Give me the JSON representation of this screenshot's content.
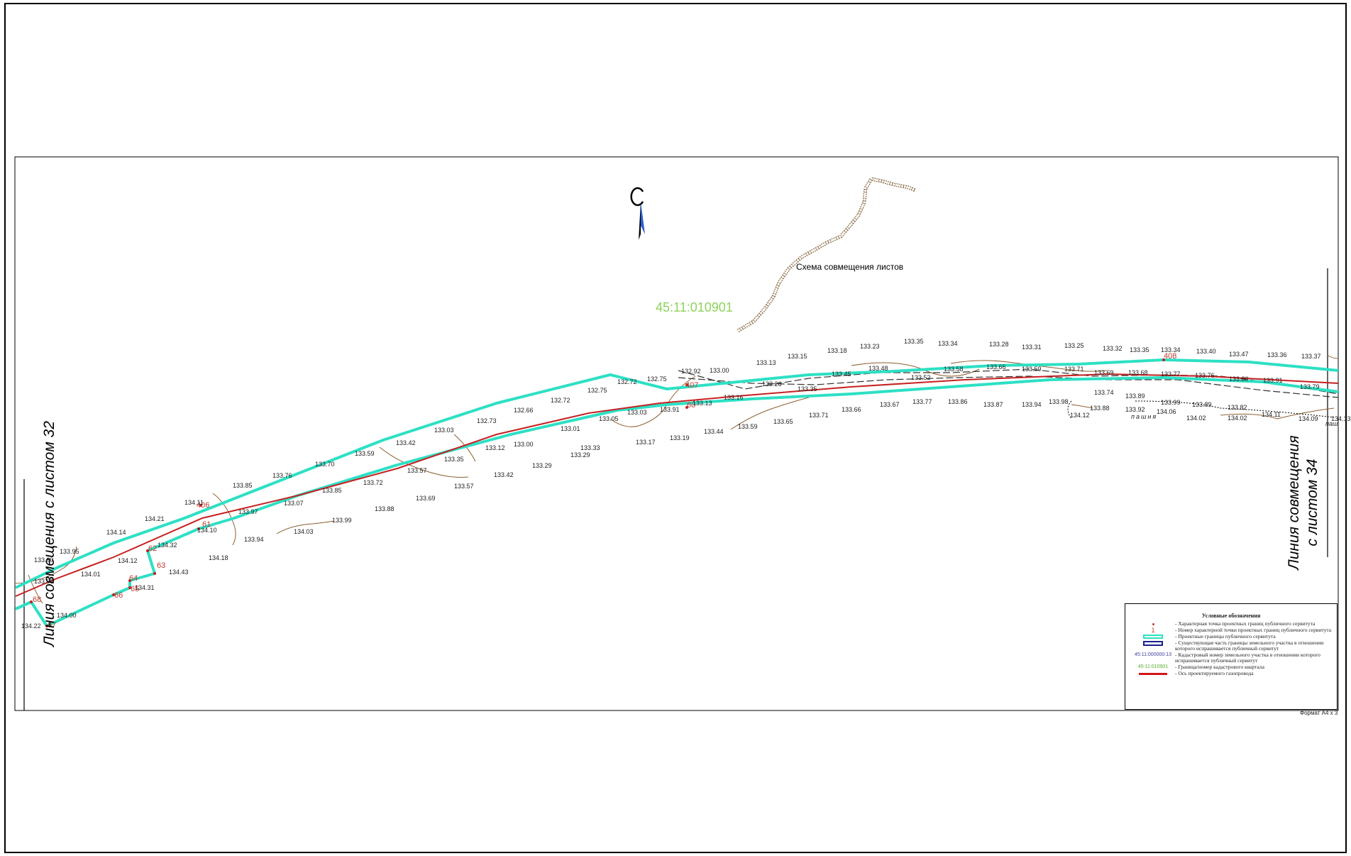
{
  "map": {
    "quarter_label": "45:11:010901",
    "scheme_label": "Схема совмещения листов",
    "left_match_line": "Линия совмещения с листом 32",
    "right_match_line_1": "Линия совмещения",
    "right_match_line_2": "с листом 34",
    "field_label_1": "пашня",
    "field_label_2": "паш",
    "north_icon": "north-arrow-icon"
  },
  "point_labels": [
    "60",
    "61",
    "62",
    "63",
    "64",
    "65",
    "66",
    "67",
    "68",
    "406",
    "407",
    "408"
  ],
  "elevations": [
    "133.90",
    "133.95",
    "133.98",
    "134.01",
    "134.14",
    "134.12",
    "134.21",
    "134.32",
    "134.43",
    "134.00",
    "134.22",
    "134.31",
    "134.11",
    "134.10",
    "134.18",
    "133.85",
    "133.97",
    "133.94",
    "133.76",
    "133.70",
    "133.59",
    "133.07",
    "133.85",
    "133.99",
    "134.03",
    "133.42",
    "133.72",
    "133.88",
    "133.69",
    "133.57",
    "133.03",
    "133.35",
    "133.57",
    "132.73",
    "133.12",
    "133.00",
    "133.42",
    "133.29",
    "132.66",
    "132.72",
    "133.01",
    "133.29",
    "132.75",
    "133.05",
    "133.33",
    "132.72",
    "133.03",
    "133.17",
    "132.75",
    "133.91",
    "133.19",
    "132.92",
    "133.00",
    "133.13",
    "133.44",
    "133.16",
    "133.59",
    "133.13",
    "133.26",
    "133.65",
    "133.15",
    "133.35",
    "133.71",
    "133.18",
    "133.45",
    "133.66",
    "133.23",
    "133.48",
    "133.67",
    "133.35",
    "133.52",
    "133.77",
    "133.34",
    "133.58",
    "133.86",
    "133.28",
    "133.66",
    "133.87",
    "133.31",
    "133.59",
    "133.94",
    "133.25",
    "133.71",
    "133.98",
    "133.32",
    "133.69",
    "133.74",
    "133.88",
    "133.35",
    "133.68",
    "133.89",
    "133.92",
    "133.34",
    "133.77",
    "133.99",
    "134.06",
    "133.40",
    "133.76",
    "133.89",
    "134.02",
    "133.47",
    "133.80",
    "133.82",
    "134.02",
    "133.36",
    "133.91",
    "134.11",
    "133.37",
    "133.79",
    "134.09",
    "134.12",
    "134.13"
  ],
  "legend": {
    "title": "Условные обозначения",
    "items": [
      {
        "text": "- Характерная точка проектных границ публичного сервитута"
      },
      {
        "sym": "1",
        "text": "- Номер характерной точки проектных границ публичного сервитута"
      },
      {
        "text": "- Проектные границы публичного сервитута"
      },
      {
        "text": "- Существующая часть границы земельного участка в отношении которого испрашивается публичный сервитут"
      },
      {
        "sym": "45:11:000000:13",
        "text": "- Кадастровый номер земельного участка в отношении которого испрашивается публичный сервитут"
      },
      {
        "sym": "45:11:010901",
        "text": "- Граница/номер кадастрового квартала"
      },
      {
        "text": "- Ось проектируемого газопровода"
      }
    ]
  },
  "format_label": "Формат А4 х 3",
  "colors": {
    "servitude_boundary": "#2de0c4",
    "pipeline_axis": "#d41515",
    "parcel_boundary": "#1a1f8a",
    "quarter": "#8ed35a",
    "contour": "#8b5e2f"
  }
}
